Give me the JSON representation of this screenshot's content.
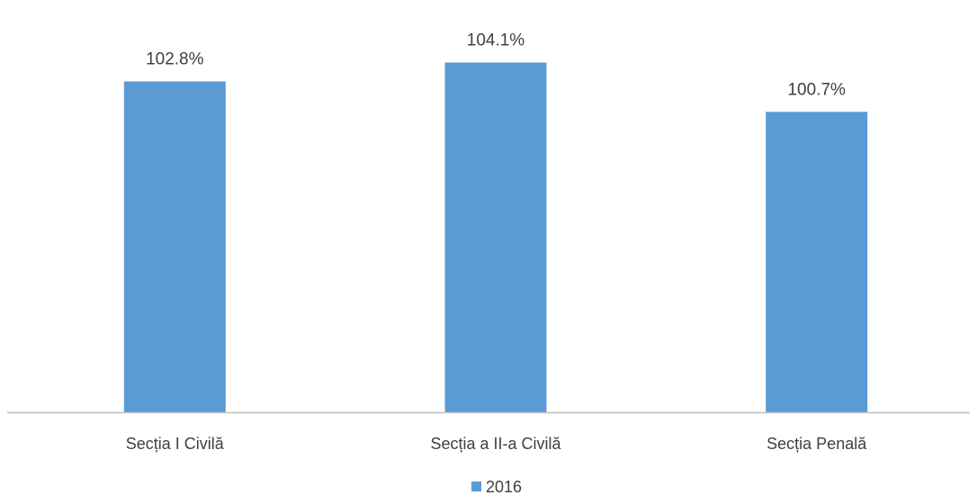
{
  "chart_data": {
    "type": "bar",
    "categories": [
      "Secția I Civilă",
      "Secția a II-a Civilă",
      "Secția Penală"
    ],
    "series": [
      {
        "name": "2016",
        "values": [
          102.8,
          104.1,
          100.7
        ],
        "labels": [
          "102.8%",
          "104.1%",
          "100.7%"
        ],
        "color": "#5B9BD5"
      }
    ],
    "ylim": [
      80,
      106
    ],
    "grid": false,
    "legend_position": "bottom"
  },
  "colors": {
    "bar": "#5B9BD5",
    "axis": "#bfbfbf",
    "text": "#404040"
  }
}
